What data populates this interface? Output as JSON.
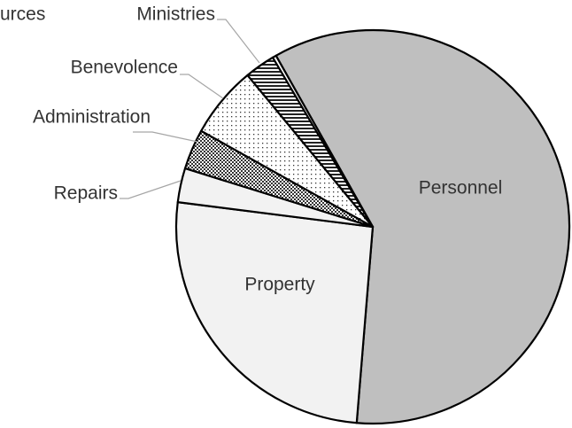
{
  "chart_data": {
    "type": "pie",
    "categories": [
      "Personnel",
      "Property",
      "Repairs",
      "Administration",
      "Benevolence",
      "Ministries",
      "urces"
    ],
    "values": [
      59.5,
      25.7,
      2.8,
      3.3,
      5.9,
      2.5,
      0.3
    ]
  }
}
